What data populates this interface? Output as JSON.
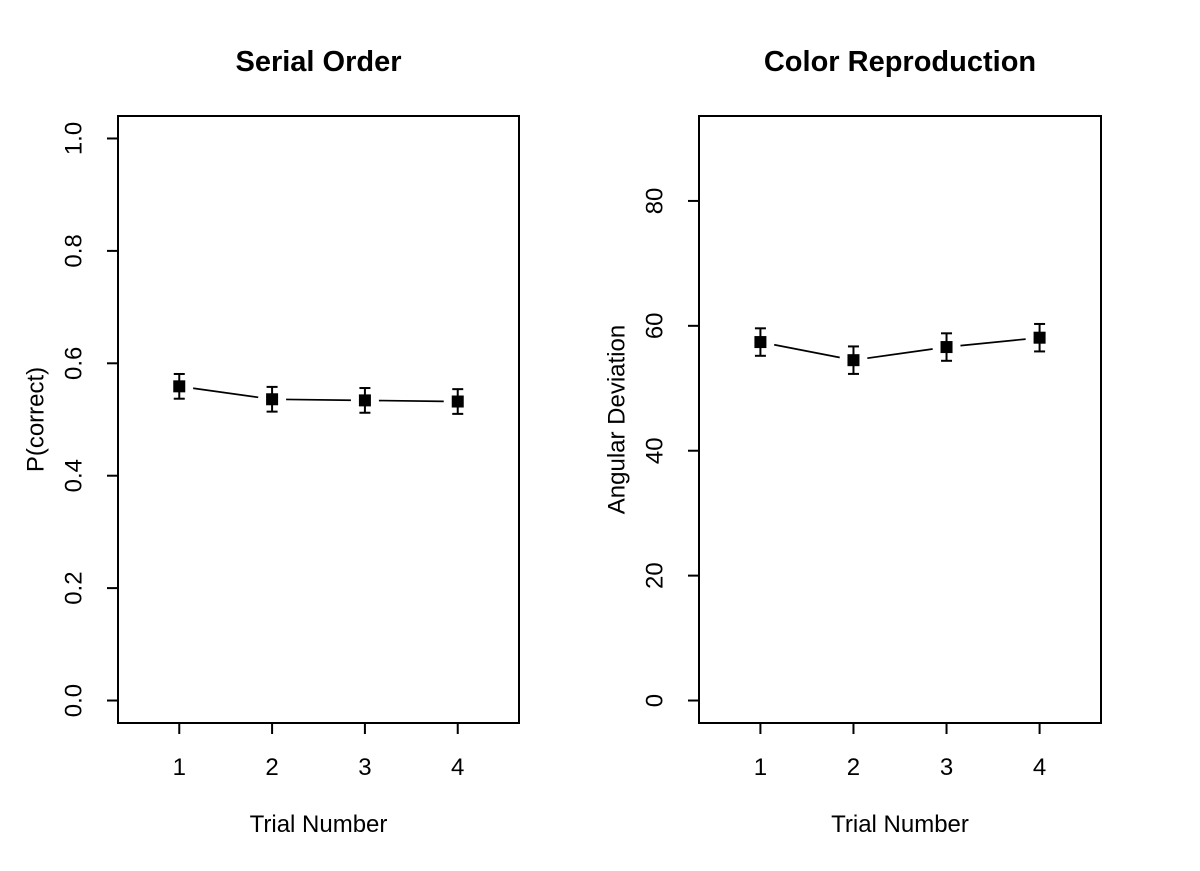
{
  "figure": {
    "background": "#ffffff",
    "foreground": "#000000"
  },
  "chart_data": [
    {
      "type": "line",
      "title": "Serial Order",
      "xlabel": "Trial Number",
      "ylabel": "P(correct)",
      "x": [
        1,
        2,
        3,
        4
      ],
      "values": [
        0.559,
        0.536,
        0.534,
        0.532
      ],
      "errors": [
        0.022,
        0.022,
        0.022,
        0.022
      ],
      "xlim": [
        0.5,
        4.5
      ],
      "ylim": [
        0,
        1
      ],
      "xticks": [
        1,
        2,
        3,
        4
      ],
      "xtick_labels": [
        "1",
        "2",
        "3",
        "4"
      ],
      "yticks": [
        0,
        0.2,
        0.4,
        0.6,
        0.8,
        1.0
      ],
      "ytick_labels": [
        "0.0",
        "0.2",
        "0.4",
        "0.6",
        "0.8",
        "1.0"
      ],
      "marker": "filled-square",
      "error_bars": true,
      "grid": false,
      "legend": "none",
      "line_color": "#000000",
      "point_color": "#000000"
    },
    {
      "type": "line",
      "title": "Color Reproduction",
      "xlabel": "Trial Number",
      "ylabel": "Angular Deviation",
      "x": [
        1,
        2,
        3,
        4
      ],
      "values": [
        57.4,
        54.5,
        56.6,
        58.1
      ],
      "errors": [
        2.2,
        2.2,
        2.2,
        2.2
      ],
      "xlim": [
        0.5,
        4.5
      ],
      "ylim": [
        0,
        90
      ],
      "xticks": [
        1,
        2,
        3,
        4
      ],
      "xtick_labels": [
        "1",
        "2",
        "3",
        "4"
      ],
      "yticks": [
        0,
        20,
        40,
        60,
        80
      ],
      "ytick_labels": [
        "0",
        "20",
        "40",
        "60",
        "80"
      ],
      "marker": "filled-square",
      "error_bars": true,
      "grid": false,
      "legend": "none",
      "line_color": "#000000",
      "point_color": "#000000"
    }
  ]
}
